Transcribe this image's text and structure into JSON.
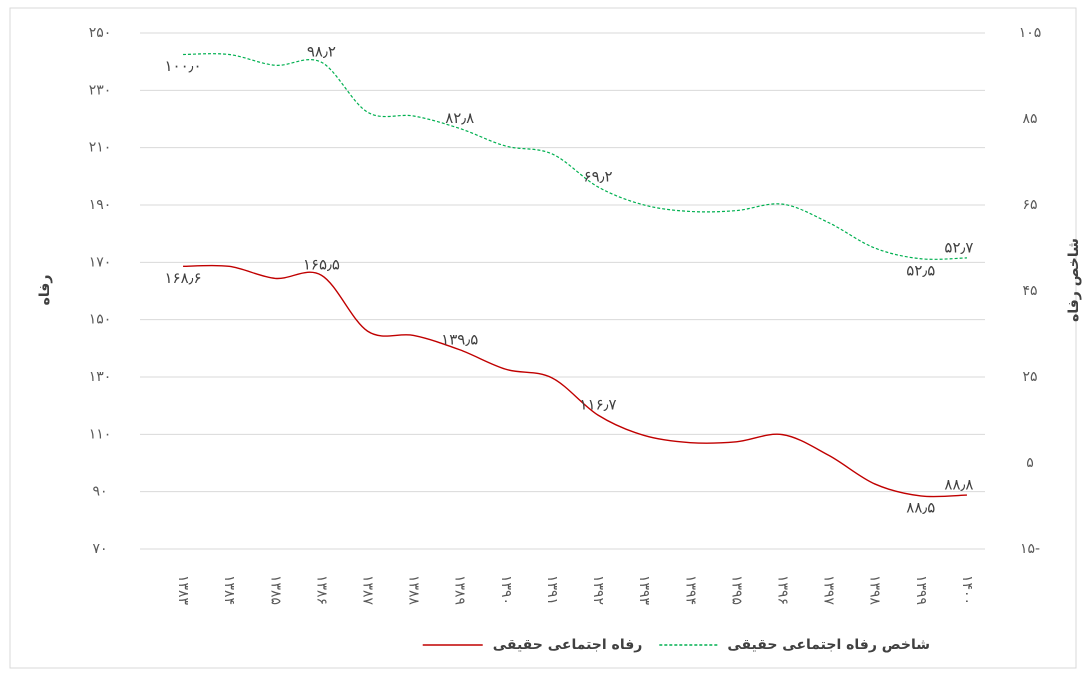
{
  "chart_data": {
    "type": "line",
    "categories": [
      "۱۳۸۳",
      "۱۳۸۴",
      "۱۳۸۵",
      "۱۳۸۶",
      "۱۳۸۷",
      "۱۳۸۸",
      "۱۳۸۹",
      "۱۳۹۰",
      "۱۳۹۱",
      "۱۳۹۲",
      "۱۳۹۳",
      "۱۳۹۴",
      "۱۳۹۵",
      "۱۳۹۶",
      "۱۳۹۷",
      "۱۳۹۸",
      "۱۳۹۹",
      "۱۴۰۰"
    ],
    "y_label": "رفاه",
    "y2_label": "شاخص رفاه",
    "ylim": [
      70,
      250
    ],
    "yticks": [
      {
        "value": 70,
        "label": "۷۰"
      },
      {
        "value": 90,
        "label": "۹۰"
      },
      {
        "value": 110,
        "label": "۱۱۰"
      },
      {
        "value": 130,
        "label": "۱۳۰"
      },
      {
        "value": 150,
        "label": "۱۵۰"
      },
      {
        "value": 170,
        "label": "۱۷۰"
      },
      {
        "value": 190,
        "label": "۱۹۰"
      },
      {
        "value": 210,
        "label": "۲۱۰"
      },
      {
        "value": 230,
        "label": "۲۳۰"
      },
      {
        "value": 250,
        "label": "۲۵۰"
      }
    ],
    "y2lim": [
      -15,
      105
    ],
    "y2ticks": [
      {
        "value": -15,
        "label": "۱۵-"
      },
      {
        "value": 5,
        "label": "۵"
      },
      {
        "value": 25,
        "label": "۲۵"
      },
      {
        "value": 45,
        "label": "۴۵"
      },
      {
        "value": 65,
        "label": "۶۵"
      },
      {
        "value": 85,
        "label": "۸۵"
      },
      {
        "value": 105,
        "label": "۱۰۵"
      }
    ],
    "grid": true,
    "legend": "bottom",
    "series": [
      {
        "name": "شاخص رفاه اجتماعی حقیقی",
        "color": "#00b050",
        "dashed": true,
        "axis": "y2",
        "values": [
          100,
          100,
          97.5,
          98.2,
          86.6,
          85.7,
          82.8,
          78.7,
          76.9,
          69.2,
          65,
          63.5,
          63.7,
          65.2,
          60.9,
          55,
          52.5,
          52.7
        ],
        "value_labels": [
          "۱۰۰٫۰",
          null,
          null,
          "۹۸٫۲",
          null,
          null,
          "۸۲٫۸",
          null,
          null,
          "۶۹٫۲",
          null,
          null,
          null,
          null,
          null,
          null,
          "۵۲٫۵",
          "۵۲٫۷"
        ]
      },
      {
        "name": "رفاه اجتماعی حقیقی",
        "color": "#c00000",
        "dashed": false,
        "axis": "y",
        "values": [
          168.6,
          168.6,
          164.4,
          165.5,
          146,
          144.5,
          139.5,
          132.7,
          129.7,
          116.7,
          109.6,
          107.1,
          107.4,
          109.9,
          102.7,
          92.7,
          88.5,
          88.8
        ],
        "value_labels": [
          "۱۶۸٫۶",
          null,
          null,
          "۱۶۵٫۵",
          null,
          null,
          "۱۳۹٫۵",
          null,
          null,
          "۱۱۶٫۷",
          null,
          null,
          null,
          null,
          null,
          null,
          "۸۸٫۵",
          "۸۸٫۸"
        ]
      }
    ]
  }
}
